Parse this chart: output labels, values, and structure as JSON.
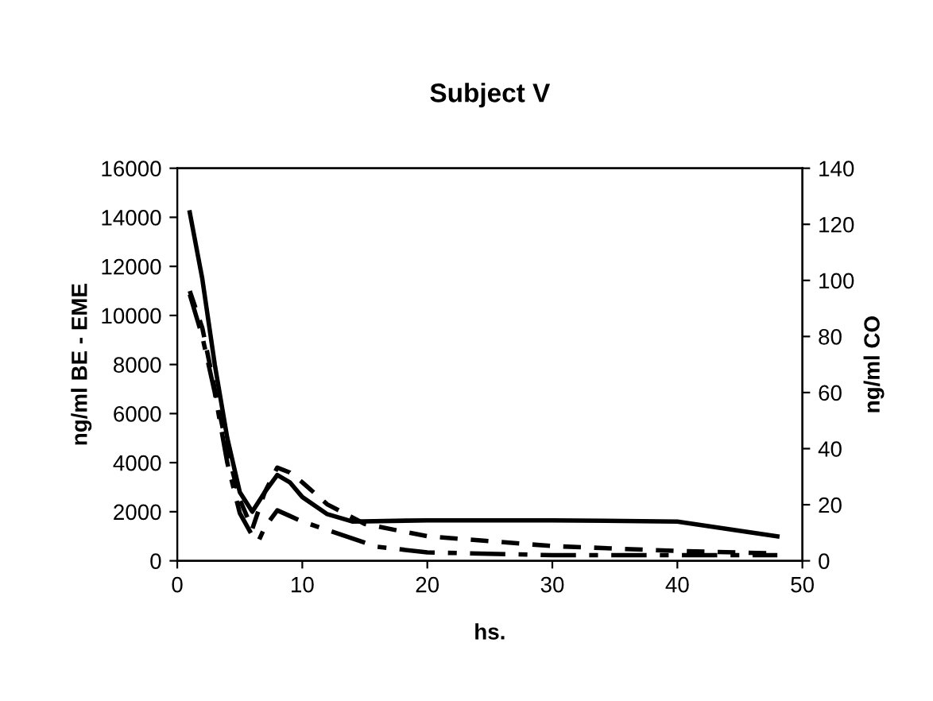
{
  "chart_data": {
    "type": "line",
    "title": "Subject V",
    "xlabel": "hs.",
    "ylabel": "ng/ml BE - EME",
    "y2label": "ng/ml CO",
    "xlim": [
      0,
      50
    ],
    "xticks": [
      0,
      10,
      20,
      30,
      40,
      50
    ],
    "ylim": [
      0,
      16000
    ],
    "yticks": [
      0,
      2000,
      4000,
      6000,
      8000,
      10000,
      12000,
      14000,
      16000
    ],
    "y2lim": [
      0,
      140
    ],
    "y2ticks": [
      0,
      20,
      40,
      60,
      80,
      100,
      120,
      140
    ],
    "grid": false,
    "marker": "none",
    "series": [
      {
        "color": "#000000",
        "line_style": "solid",
        "x": [
          1,
          2,
          3,
          4,
          5,
          6,
          7,
          8,
          9,
          10,
          12,
          14,
          20,
          30,
          40,
          48
        ],
        "values": [
          14200,
          11500,
          8000,
          5000,
          2800,
          2000,
          2800,
          3500,
          3200,
          2600,
          1900,
          1600,
          1650,
          1650,
          1600,
          1000
        ]
      },
      {
        "color": "#000000",
        "line_style": "dashed",
        "x": [
          1,
          2,
          3,
          4,
          5,
          6,
          7,
          8,
          9,
          10,
          12,
          15,
          20,
          25,
          30,
          40,
          48
        ],
        "values": [
          11000,
          9500,
          7000,
          4500,
          2500,
          1300,
          2800,
          3800,
          3600,
          3200,
          2300,
          1500,
          1000,
          800,
          600,
          400,
          300
        ]
      },
      {
        "color": "#000000",
        "line_style": "dashdot",
        "axis": "y2",
        "x": [
          1,
          2,
          3,
          4,
          5,
          6,
          6.5,
          7,
          8,
          9,
          10,
          12,
          16,
          20,
          30,
          40,
          48
        ],
        "values": [
          95,
          80,
          60,
          35,
          17,
          9,
          7,
          12,
          18,
          16,
          14,
          11,
          5,
          3,
          2,
          2,
          2
        ]
      }
    ]
  }
}
